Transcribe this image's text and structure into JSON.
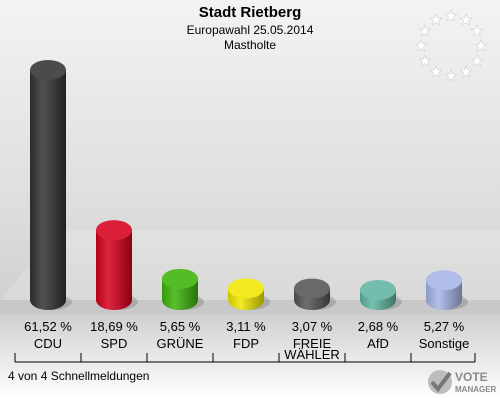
{
  "header": {
    "title": "Stadt Rietberg",
    "subtitle": "Europawahl 25.05.2014",
    "location": "Mastholte"
  },
  "footer": {
    "status": "4 von 4 Schnellmeldungen"
  },
  "logo": {
    "line1": "VOTE",
    "line2": "MANAGER"
  },
  "chart_data": {
    "type": "bar",
    "categories": [
      "CDU",
      "SPD",
      "GRÜNE",
      "FDP",
      "FREIE WÄHLER",
      "AfD",
      "Sonstige"
    ],
    "category_lines": [
      [
        "CDU"
      ],
      [
        "SPD"
      ],
      [
        "GRÜNE"
      ],
      [
        "FDP"
      ],
      [
        "FREIE",
        "WÄHLER"
      ],
      [
        "AfD"
      ],
      [
        "Sonstige"
      ]
    ],
    "values": [
      61.52,
      18.69,
      5.65,
      3.11,
      3.07,
      2.68,
      5.27
    ],
    "value_labels": [
      "61,52 %",
      "18,69 %",
      "5,65 %",
      "3,11 %",
      "3,07 %",
      "2,68 %",
      "5,27 %"
    ],
    "colors": [
      "#333333",
      "#d7001d",
      "#3cb40a",
      "#f0e600",
      "#555555",
      "#5fb4a0",
      "#a6b4e6"
    ],
    "ylim": [
      0,
      61.52
    ]
  }
}
